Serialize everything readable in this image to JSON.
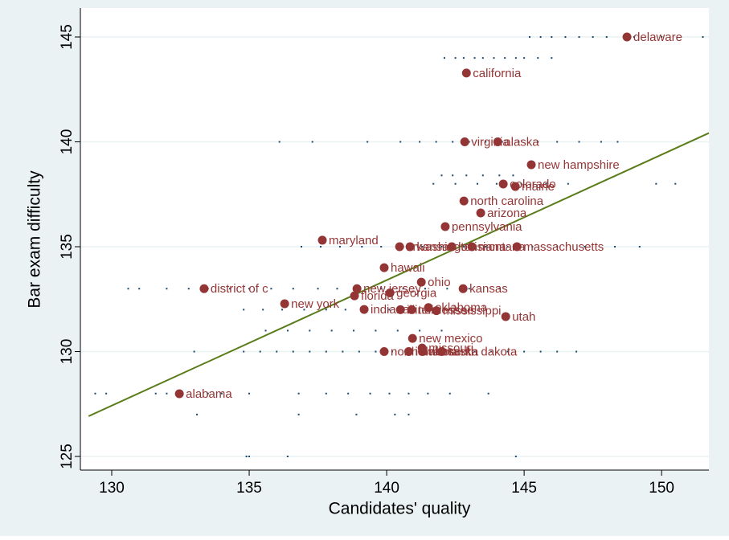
{
  "chart_data": {
    "type": "scatter",
    "x_label": "Candidates' quality",
    "y_label": "Bar exam difficulty",
    "xlim": [
      128.86,
      151.72
    ],
    "ylim": [
      124.35,
      146.38
    ],
    "xticks": [
      130,
      135,
      140,
      145,
      150
    ],
    "yticks": [
      125,
      130,
      135,
      140,
      145
    ],
    "grid": true,
    "series": [
      {
        "color": "#943535",
        "labels": [
          "delaware",
          "california",
          "virginia",
          "alaska",
          "new hampshire",
          "colorado",
          "maine",
          "north carolina",
          "arizona",
          "pennsylvania",
          "maryland",
          "arkansas",
          "washington",
          "louisiana",
          "montana",
          "massachusetts",
          "hawaii",
          "ohio",
          "district of c",
          "new jersey",
          "kansas",
          "georgia",
          "florida",
          "new york",
          "indiana",
          "illinois",
          "tennessee",
          "oklahoma",
          "mississippi",
          "utah",
          "new mexico",
          "missouri",
          "north dakota",
          "iowa",
          "nebraska",
          "south dakota",
          "alabama"
        ],
        "x": [
          148.74,
          142.9,
          142.84,
          144.04,
          145.26,
          144.24,
          144.68,
          142.81,
          143.42,
          142.13,
          137.66,
          140.47,
          140.85,
          142.37,
          143.1,
          144.74,
          139.91,
          141.26,
          133.36,
          138.92,
          142.78,
          140.12,
          138.83,
          136.29,
          139.18,
          140.5,
          140.91,
          141.52,
          141.81,
          144.33,
          140.94,
          141.29,
          139.91,
          140.8,
          141.3,
          142.0,
          132.46
        ],
        "values": [
          145,
          143.28,
          140,
          140,
          138.91,
          137.99,
          137.87,
          137.18,
          136.61,
          135.96,
          135.31,
          135,
          135,
          135,
          135,
          135,
          134,
          133.31,
          133,
          133,
          133,
          132.8,
          132.66,
          132.28,
          132.01,
          132,
          132,
          132.1,
          131.95,
          131.67,
          130.63,
          130.17,
          130,
          130,
          130,
          130,
          127.99
        ]
      },
      {
        "color": "#1a476f",
        "x": [
          145.2,
          145.6,
          146,
          146.5,
          147,
          147.5,
          148,
          149,
          150,
          151.5,
          142.1,
          142.5,
          142.8,
          143.2,
          143.5,
          143.9,
          144.3,
          144.7,
          145,
          145.5,
          146,
          136.1,
          137.3,
          139.3,
          140.5,
          141.2,
          141.8,
          142.4,
          143,
          143.6,
          144.2,
          144.8,
          145.5,
          146.2,
          147,
          147.8,
          148.4,
          142,
          142.4,
          142.9,
          143.5,
          144.1,
          144.6,
          141.7,
          142.5,
          143.3,
          144,
          144.9,
          145.8,
          146.6,
          149.8,
          150.5,
          136.9,
          137.6,
          138.3,
          139.1,
          139.8,
          140.6,
          141.3,
          142,
          142.8,
          143.6,
          144.4,
          145.3,
          146.2,
          147.2,
          148.3,
          149.2,
          130.6,
          131,
          132,
          132.8,
          133.5,
          134.3,
          135,
          135.8,
          136.6,
          137.5,
          138.2,
          139,
          139.8,
          140.6,
          141.4,
          142.2,
          143,
          144.1,
          134.8,
          135.5,
          136.2,
          137,
          137.8,
          138.5,
          139.3,
          140.1,
          140.9,
          141.7,
          142.5,
          143,
          135.6,
          136.4,
          137.2,
          138,
          138.8,
          139.6,
          140.4,
          141.2,
          142,
          133,
          134.8,
          135.4,
          136,
          136.6,
          137.2,
          137.8,
          138.4,
          139,
          139.6,
          140.2,
          140.8,
          141.4,
          142,
          142.6,
          143.2,
          143.8,
          144.4,
          145,
          145.6,
          146.2,
          146.9,
          129.4,
          129.8,
          131.6,
          132,
          133.5,
          134,
          135,
          136.8,
          137.8,
          138.6,
          139.4,
          140.1,
          140.8,
          141.5,
          142.3,
          143.7,
          133.1,
          136.8,
          138.9,
          140.3,
          140.8,
          134.9,
          135,
          136.4,
          144.7
        ],
        "values": [
          145,
          145,
          145,
          145,
          145,
          145,
          145,
          145,
          145,
          145,
          144,
          144,
          144,
          144,
          144,
          144,
          144,
          144,
          144,
          144,
          144,
          140,
          140,
          140,
          140,
          140,
          140,
          140,
          140,
          140,
          140,
          140,
          140,
          140,
          140,
          140,
          140,
          138.4,
          138.4,
          138.4,
          138.4,
          138.4,
          138.4,
          138,
          138,
          138,
          138,
          138,
          138,
          138,
          138,
          138,
          135,
          135,
          135,
          135,
          135,
          135,
          135,
          135,
          135,
          135,
          135,
          135,
          135,
          135,
          135,
          135,
          133,
          133,
          133,
          133,
          133,
          133,
          133,
          133,
          133,
          133,
          133,
          133,
          133,
          133,
          133,
          133,
          133,
          133,
          132,
          132,
          132,
          132,
          132,
          132,
          132,
          132,
          132,
          132,
          132,
          132,
          131,
          131,
          131,
          131,
          131,
          131,
          131,
          131,
          131,
          130,
          130,
          130,
          130,
          130,
          130,
          130,
          130,
          130,
          130,
          130,
          130,
          130,
          130,
          130,
          130,
          130,
          130,
          130,
          130,
          130,
          130,
          128,
          128,
          128,
          128,
          128,
          128,
          128,
          128,
          128,
          128,
          128,
          128,
          128,
          128,
          128,
          128,
          127,
          127,
          127,
          127,
          127,
          125,
          125,
          125,
          125
        ]
      },
      {
        "type": "line",
        "color": "#5a7d1a",
        "x": [
          129.16,
          151.72
        ],
        "values": [
          126.92,
          140.42
        ]
      }
    ]
  }
}
